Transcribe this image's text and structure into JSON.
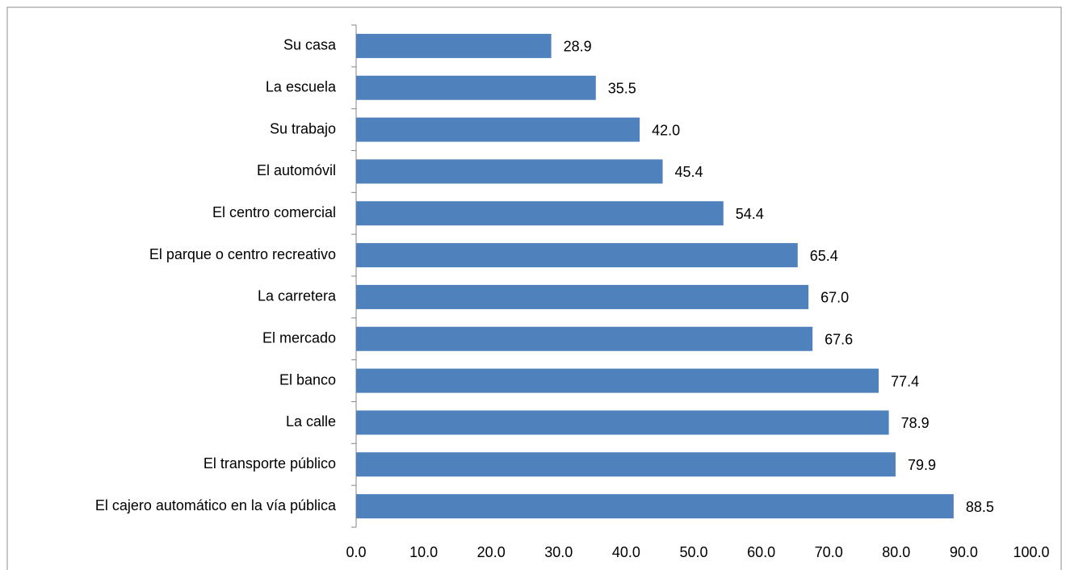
{
  "chart_data": {
    "type": "bar",
    "orientation": "horizontal",
    "categories": [
      "Su casa",
      "La escuela",
      "Su trabajo",
      "El automóvil",
      "El centro comercial",
      "El parque o centro recreativo",
      "La carretera",
      "El mercado",
      "El banco",
      "La calle",
      "El transporte público",
      "El cajero automático en la vía pública"
    ],
    "values": [
      28.9,
      35.5,
      42.0,
      45.4,
      54.4,
      65.4,
      67.0,
      67.6,
      77.4,
      78.9,
      79.9,
      88.5
    ],
    "value_labels": [
      "28.9",
      "35.5",
      "42.0",
      "45.4",
      "54.4",
      "65.4",
      "67.0",
      "67.6",
      "77.4",
      "78.9",
      "79.9",
      "88.5"
    ],
    "color": "#4f81bd",
    "xlim": [
      0,
      100
    ],
    "xticks": [
      {
        "value": 0,
        "label": "0.0"
      },
      {
        "value": 10,
        "label": "10.0"
      },
      {
        "value": 20,
        "label": "20.0"
      },
      {
        "value": 30,
        "label": "30.0"
      },
      {
        "value": 40,
        "label": "40.0"
      },
      {
        "value": 50,
        "label": "50.0"
      },
      {
        "value": 60,
        "label": "60.0"
      },
      {
        "value": 70,
        "label": "70.0"
      },
      {
        "value": 80,
        "label": "80.0"
      },
      {
        "value": 90,
        "label": "90.0"
      },
      {
        "value": 100,
        "label": "100.0"
      }
    ],
    "grid": false
  }
}
